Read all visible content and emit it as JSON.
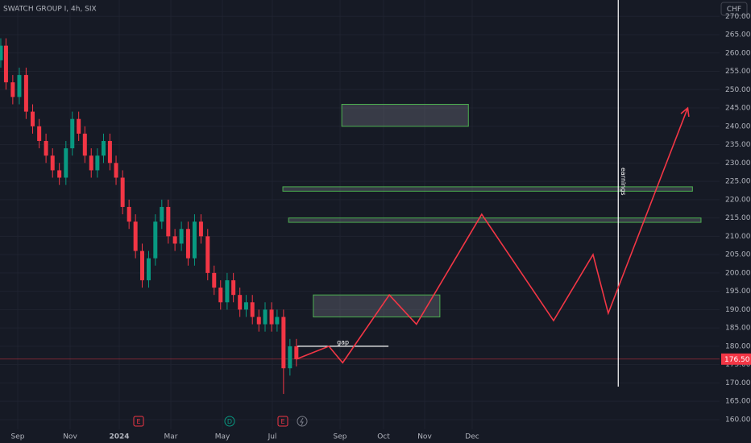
{
  "chart_data": {
    "type": "candlestick",
    "title": "SWATCH GROUP I, 4h, SIX",
    "currency": "CHF",
    "x": [
      0.35,
      0.55,
      0.81,
      1.06,
      1.32,
      1.57,
      1.82,
      2.08,
      2.33,
      2.59,
      2.84,
      3.09,
      3.35,
      3.6,
      3.86,
      4.11,
      4.36,
      4.62,
      4.87,
      5.13,
      5.38,
      5.63,
      5.89,
      6.14,
      6.4,
      6.65,
      6.9,
      7.16,
      7.41,
      7.67,
      7.92,
      8.17,
      8.43,
      8.68,
      8.93,
      9.19,
      9.44,
      9.7,
      9.95,
      10.2,
      10.46,
      10.71,
      10.97,
      11.14,
      11.33,
      11.52,
      11.71
    ],
    "open": [
      258,
      262,
      252,
      248,
      254,
      244,
      240,
      236,
      232,
      228,
      226,
      234,
      242,
      238,
      232,
      228,
      232,
      236,
      230,
      226,
      218,
      214,
      206,
      198,
      204,
      214,
      218,
      210,
      208,
      212,
      204,
      214,
      210,
      200,
      196,
      192,
      198,
      194,
      190,
      192,
      188,
      186,
      190,
      186,
      188,
      174,
      180
    ],
    "high": [
      264,
      264,
      254,
      256,
      256,
      246,
      242,
      238,
      234,
      230,
      236,
      244,
      244,
      240,
      234,
      234,
      238,
      238,
      232,
      228,
      220,
      216,
      208,
      206,
      216,
      220,
      220,
      212,
      214,
      214,
      216,
      216,
      212,
      202,
      198,
      200,
      200,
      196,
      194,
      194,
      190,
      192,
      192,
      190,
      190,
      182,
      182
    ],
    "low": [
      256,
      250,
      246,
      246,
      242,
      238,
      234,
      230,
      226,
      224,
      224,
      232,
      236,
      230,
      226,
      226,
      230,
      228,
      224,
      216,
      212,
      204,
      196,
      196,
      202,
      212,
      208,
      206,
      206,
      202,
      202,
      208,
      198,
      194,
      190,
      190,
      192,
      188,
      188,
      186,
      184,
      184,
      184,
      184,
      167,
      172,
      174.5
    ],
    "close": [
      262,
      252,
      248,
      254,
      244,
      240,
      236,
      232,
      228,
      226,
      234,
      242,
      238,
      232,
      228,
      232,
      236,
      230,
      226,
      218,
      214,
      206,
      198,
      204,
      214,
      218,
      210,
      208,
      212,
      204,
      214,
      210,
      200,
      196,
      192,
      198,
      194,
      190,
      192,
      188,
      186,
      190,
      186,
      188,
      174,
      180,
      176.5
    ],
    "up_color": "#089981",
    "down_color": "#f23645",
    "xlim": [
      0.32,
      21.2
    ],
    "xticks": [
      {
        "value": 1,
        "label": "Sep"
      },
      {
        "value": 3,
        "label": "Nov"
      },
      {
        "value": 5,
        "label": "2024"
      },
      {
        "value": 7,
        "label": "Mar"
      },
      {
        "value": 9,
        "label": "May"
      },
      {
        "value": 11,
        "label": "Jul"
      },
      {
        "value": 13,
        "label": "Sep"
      },
      {
        "value": 14,
        "label": "Oct"
      },
      {
        "value": 15,
        "label": "Nov"
      },
      {
        "value": 16,
        "label": "Dec"
      }
    ],
    "ylim": [
      157.35,
      274.45
    ],
    "yticks": [
      {
        "value": 160,
        "label": "160.00"
      },
      {
        "value": 165,
        "label": "165.00"
      },
      {
        "value": 170,
        "label": "170.00"
      },
      {
        "value": 175,
        "label": "175.00"
      },
      {
        "value": 180,
        "label": "180.00"
      },
      {
        "value": 185,
        "label": "185.00"
      },
      {
        "value": 190,
        "label": "190.00"
      },
      {
        "value": 195,
        "label": "195.00"
      },
      {
        "value": 200,
        "label": "200.00"
      },
      {
        "value": 205,
        "label": "205.00"
      },
      {
        "value": 210,
        "label": "210.00"
      },
      {
        "value": 215,
        "label": "215.00"
      },
      {
        "value": 220,
        "label": "220.00"
      },
      {
        "value": 225,
        "label": "225.00"
      },
      {
        "value": 230,
        "label": "230.00"
      },
      {
        "value": 235,
        "label": "235.00"
      },
      {
        "value": 240,
        "label": "240.00"
      },
      {
        "value": 245,
        "label": "245.00"
      },
      {
        "value": 250,
        "label": "250.00"
      },
      {
        "value": 255,
        "label": "255.00"
      },
      {
        "value": 260,
        "label": "260.00"
      },
      {
        "value": 265,
        "label": "265.00"
      },
      {
        "value": 270,
        "label": "270.00"
      }
    ],
    "grid": true,
    "current_price": {
      "value": 176.5,
      "label": "176.50",
      "color": "#f23645"
    },
    "zones": [
      {
        "x": [
          13.04,
          15.92
        ],
        "y": [
          246,
          240
        ]
      },
      {
        "x": [
          11.31,
          20.63
        ],
        "y": [
          223.5,
          222.3
        ]
      },
      {
        "x": [
          11.48,
          20.81
        ],
        "y": [
          215,
          213.8
        ]
      },
      {
        "x": [
          12.21,
          15.32
        ],
        "y": [
          194,
          188
        ]
      }
    ],
    "zone_fill": "rgba(120,123,134,0.35)",
    "zone_stroke": "#4caf50",
    "projection": {
      "color": "#f23645",
      "x": [
        11.71,
        12.67,
        13.06,
        14.14,
        14.8,
        16.2,
        17.71,
        18.54,
        18.86,
        20.53
      ],
      "y": [
        176.5,
        180,
        175.5,
        194,
        186,
        216,
        187,
        205,
        189,
        245
      ]
    },
    "gap": {
      "label": "gap",
      "x": [
        11.74,
        14.12
      ],
      "y": 180
    },
    "earnings": {
      "label": "earnings",
      "x": 19.07,
      "y": 169
    },
    "events": [
      "E",
      "D",
      "E"
    ]
  }
}
